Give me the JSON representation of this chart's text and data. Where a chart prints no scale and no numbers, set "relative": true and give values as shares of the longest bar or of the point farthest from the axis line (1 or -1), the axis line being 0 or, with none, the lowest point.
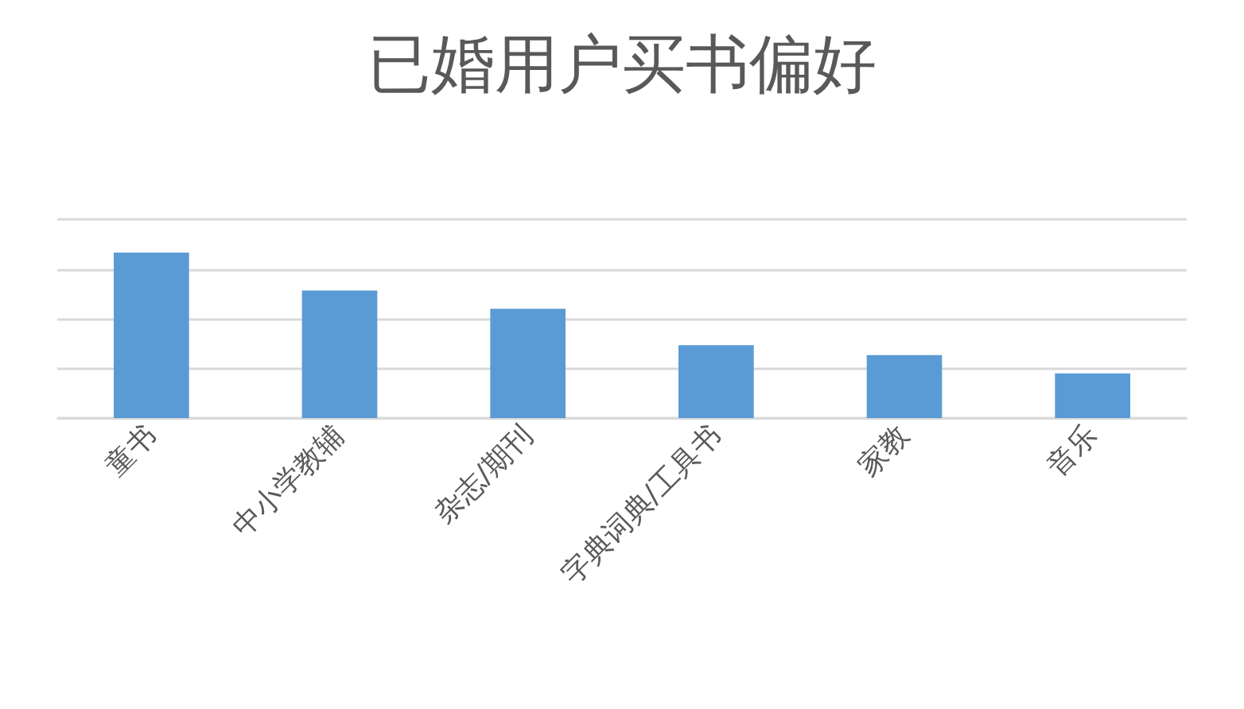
{
  "chart_data": {
    "type": "bar",
    "title": "已婚用户买书偏好",
    "categories": [
      "童书",
      "中小学教辅",
      "杂志/期刊",
      "字典词典/工具书",
      "家教",
      "音乐"
    ],
    "values": [
      1,
      0.77,
      0.66,
      0.44,
      0.38,
      0.27
    ],
    "color": "#5b9bd5",
    "relative": true,
    "grid": "y"
  }
}
